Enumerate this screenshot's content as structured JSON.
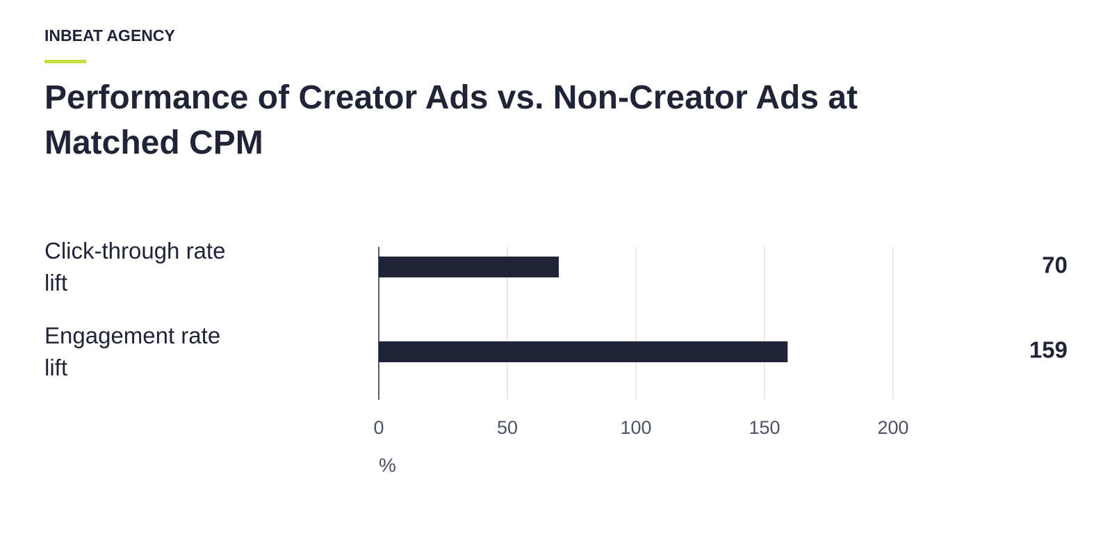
{
  "chart_data": {
    "type": "bar",
    "orientation": "horizontal",
    "brand": "INBEAT AGENCY",
    "title": "Performance of Creator Ads vs. Non-Creator Ads at Matched CPM",
    "categories": [
      "Click-through rate lift",
      "Engagement rate lift"
    ],
    "values": [
      70,
      159
    ],
    "color": "#1f2536",
    "accent_color": "#c5dd3b",
    "xlim": [
      0,
      200
    ],
    "xticks": [
      0,
      50,
      100,
      150,
      200
    ],
    "xlabel": "%",
    "grid": true
  }
}
